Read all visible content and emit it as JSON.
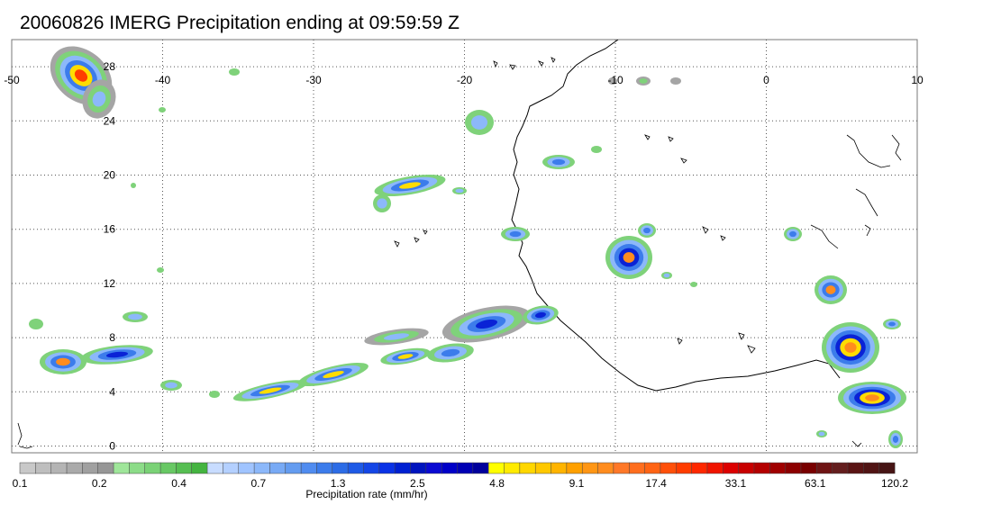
{
  "title": "20060826 IMERG Precipitation ending at 09:59:59 Z",
  "map": {
    "lon_range": [
      -50,
      10
    ],
    "lat_range": [
      -0.5,
      30
    ],
    "lon_ticks": [
      "-50",
      "-40",
      "-30",
      "-20",
      "-10",
      "0",
      "10"
    ],
    "lat_ticks": [
      "0",
      "4",
      "8",
      "12",
      "16",
      "20",
      "24",
      "28"
    ],
    "grid": "dotted"
  },
  "colorbar": {
    "title": "Precipitation rate (mm/hr)",
    "tick_labels": [
      "0.1",
      "0.2",
      "0.4",
      "0.7",
      "1.3",
      "2.5",
      "4.8",
      "9.1",
      "17.4",
      "33.1",
      "63.1",
      "120.2"
    ],
    "colors": [
      "#c8c8c8",
      "#bebebe",
      "#b4b4b4",
      "#aaaaaa",
      "#a0a0a0",
      "#969696",
      "#9fe69a",
      "#8cdc88",
      "#7ad276",
      "#68c864",
      "#56be52",
      "#44b440",
      "#c8dcff",
      "#b4d0ff",
      "#a0c4ff",
      "#8cb8fa",
      "#78aaf5",
      "#649cf0",
      "#508cf0",
      "#3c7ceb",
      "#2c6ce6",
      "#1e5ae6",
      "#1446e6",
      "#0a32e6",
      "#0020d2",
      "#0014be",
      "#0a0ad2",
      "#0000c8",
      "#0000b4",
      "#00009c",
      "#ffff00",
      "#ffeb00",
      "#ffd700",
      "#ffc800",
      "#ffb400",
      "#ffa000",
      "#ff9614",
      "#ff8c1e",
      "#ff7828",
      "#ff6e1e",
      "#ff6414",
      "#ff500a",
      "#ff3c00",
      "#ff2800",
      "#f01400",
      "#dc0000",
      "#c80000",
      "#b40000",
      "#a00000",
      "#8c0000",
      "#780000",
      "#6e1414",
      "#641e1e",
      "#5a1414",
      "#501414",
      "#461414"
    ]
  }
}
